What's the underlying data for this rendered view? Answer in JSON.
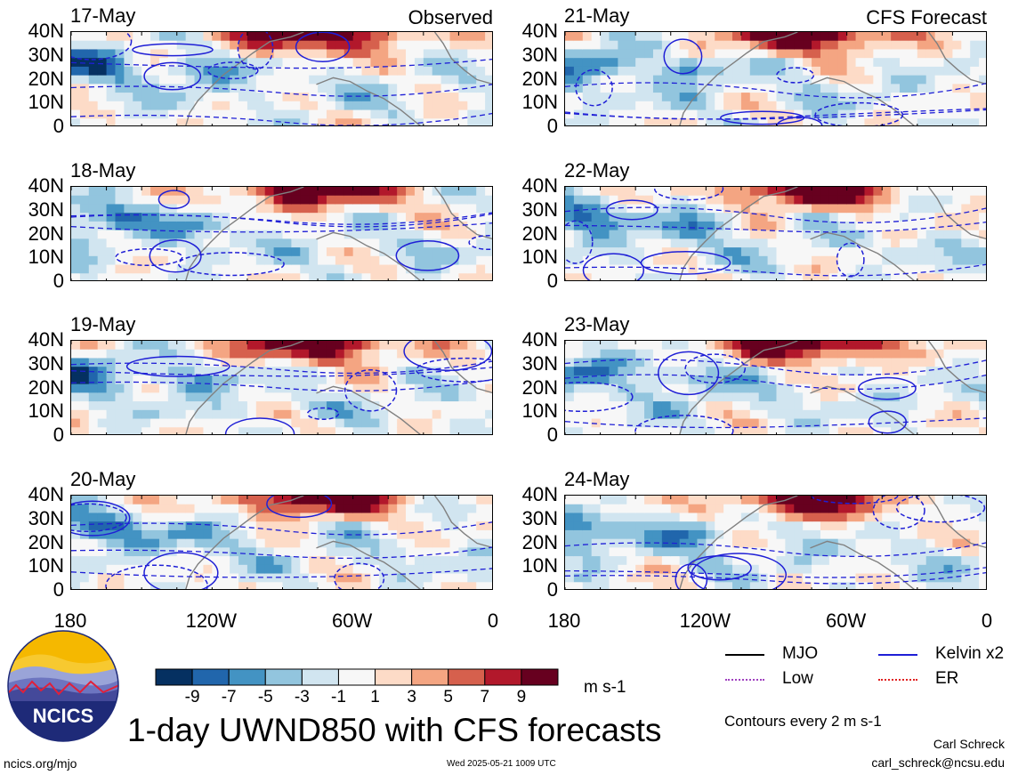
{
  "chart_data": {
    "type": "heatmap",
    "title": "1-day UWND850 with CFS forecasts",
    "variable": "UWND850",
    "units": "m s-1",
    "colorbar": {
      "ticks": [
        "-9",
        "-7",
        "-5",
        "-3",
        "-1",
        "1",
        "3",
        "5",
        "7",
        "9"
      ],
      "colors": [
        "#053061",
        "#2166ac",
        "#4393c3",
        "#92c5de",
        "#d1e5f0",
        "#f7f7f7",
        "#fddbc7",
        "#f4a582",
        "#d6604d",
        "#b2182b",
        "#67001f"
      ]
    },
    "y_ticks": [
      "40N",
      "30N",
      "20N",
      "10N",
      "0"
    ],
    "x_ticks": [
      "180",
      "120W",
      "60W",
      "0"
    ],
    "x_range_lon": [
      -180,
      0
    ],
    "y_range_lat": [
      0,
      40
    ],
    "columns": [
      {
        "label": "Observed",
        "panels": [
          "17-May",
          "18-May",
          "19-May",
          "20-May"
        ]
      },
      {
        "label": "CFS Forecast",
        "panels": [
          "21-May",
          "22-May",
          "23-May",
          "24-May"
        ]
      }
    ],
    "legend": [
      {
        "name": "MJO",
        "color": "#000000",
        "style": "solid"
      },
      {
        "name": "Kelvin x2",
        "color": "#1f1fd6",
        "style": "solid"
      },
      {
        "name": "Low",
        "color": "#a040c0",
        "style": "dotted"
      },
      {
        "name": "ER",
        "color": "#e02020",
        "style": "dotted"
      }
    ],
    "contour_note": "Contours every 2 m s-1"
  },
  "footer": {
    "logo_text": "NCICS",
    "site": "ncics.org/mjo",
    "timestamp": "Wed 2025-05-21 1009 UTC",
    "author": "Carl Schreck",
    "email": "carl_schreck@ncsu.edu"
  }
}
